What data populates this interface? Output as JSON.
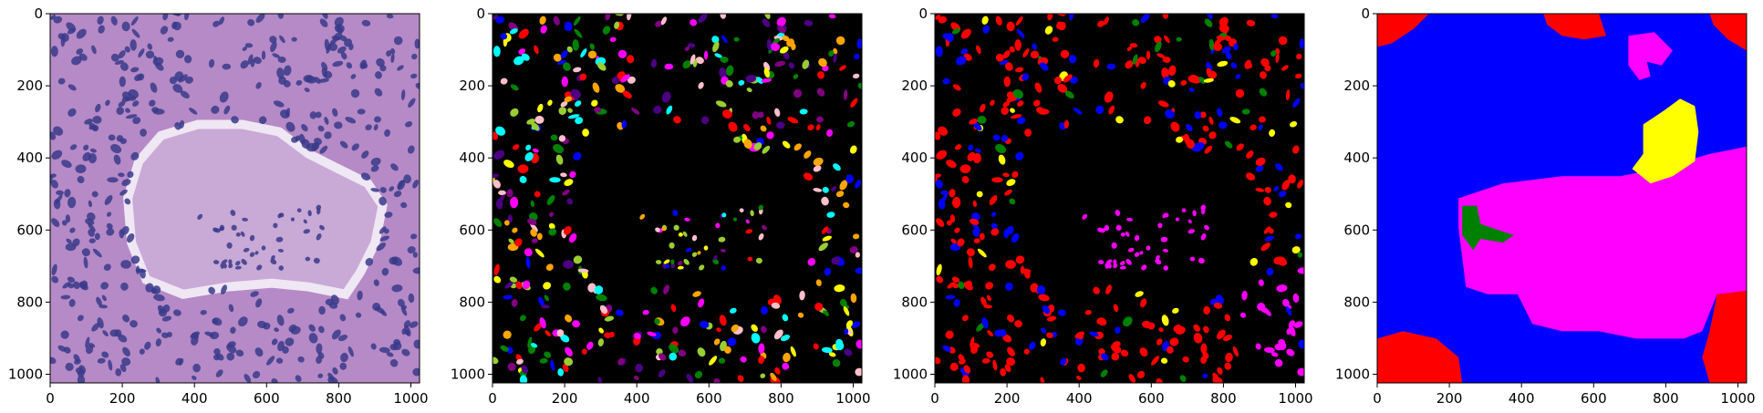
{
  "panels": [
    {
      "name": "he-histology-image",
      "kind": "histology",
      "palette": {
        "background": "#b58ac6",
        "stroma": "#c9a9d6",
        "nucleus": "#3a3a8a",
        "lumen": "#efe7f3"
      },
      "x_ticks": [
        "0",
        "200",
        "400",
        "600",
        "800",
        "1000"
      ],
      "y_ticks": [
        "0",
        "200",
        "400",
        "600",
        "800",
        "1000"
      ]
    },
    {
      "name": "instance-segmentation-mask",
      "kind": "instance",
      "palette": {
        "background": "#000000",
        "colors": [
          "#ff0000",
          "#0000ff",
          "#00ffff",
          "#ff00ff",
          "#ffff00",
          "#ffa500",
          "#008000",
          "#4b0082",
          "#ffc0cb",
          "#9acd32",
          "#800080"
        ]
      },
      "x_ticks": [
        "0",
        "200",
        "400",
        "600",
        "800",
        "1000"
      ],
      "y_ticks": [
        "0",
        "200",
        "400",
        "600",
        "800",
        "1000"
      ]
    },
    {
      "name": "nucleus-type-mask",
      "kind": "type",
      "palette": {
        "background": "#000000",
        "colors": [
          "#ff0000",
          "#0000ff",
          "#ff00ff",
          "#ffff00",
          "#008000"
        ]
      },
      "x_ticks": [
        "0",
        "200",
        "400",
        "600",
        "800",
        "1000"
      ],
      "y_ticks": [
        "0",
        "200",
        "400",
        "600",
        "800",
        "1000"
      ]
    },
    {
      "name": "tissue-region-mask",
      "kind": "region",
      "palette": {
        "background": "#0000ff",
        "colors": [
          "#ff0000",
          "#ff00ff",
          "#ffff00",
          "#008000"
        ]
      },
      "x_ticks": [
        "0",
        "200",
        "400",
        "600",
        "800",
        "1000"
      ],
      "y_ticks": [
        "0",
        "200",
        "400",
        "600",
        "800",
        "1000"
      ]
    }
  ]
}
